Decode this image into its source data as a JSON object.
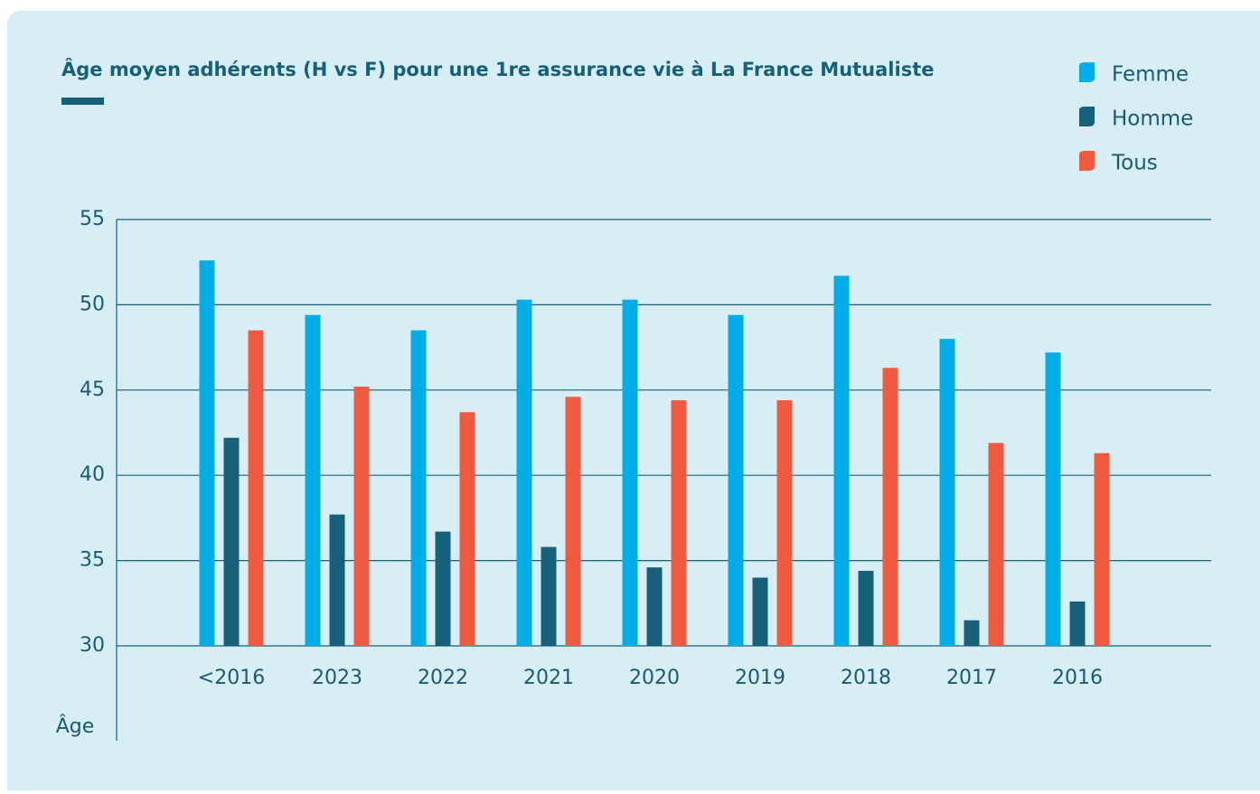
{
  "chart_data": {
    "type": "bar",
    "title": "Âge moyen adhérents (H vs F) pour une 1re assurance vie à La France Mutualiste",
    "y_label": "Âge",
    "categories": [
      "<2016",
      "2023",
      "2022",
      "2021",
      "2020",
      "2019",
      "2018",
      "2017",
      "2016"
    ],
    "series": [
      {
        "name": "Femme",
        "color": "#00ade6",
        "values": [
          52.6,
          49.4,
          48.5,
          50.3,
          50.3,
          49.4,
          51.7,
          48.0,
          47.2
        ]
      },
      {
        "name": "Homme",
        "color": "#17607a",
        "values": [
          42.2,
          37.7,
          36.7,
          35.8,
          34.6,
          34.0,
          34.4,
          31.5,
          32.6
        ]
      },
      {
        "name": "Tous",
        "color": "#f05a40",
        "values": [
          48.5,
          45.2,
          43.7,
          44.6,
          44.4,
          44.4,
          46.3,
          41.9,
          41.3
        ]
      }
    ],
    "ylim": [
      30,
      55
    ],
    "yticks": [
      30,
      35,
      40,
      45,
      50,
      55
    ],
    "grid": true,
    "legend": "top-right"
  }
}
